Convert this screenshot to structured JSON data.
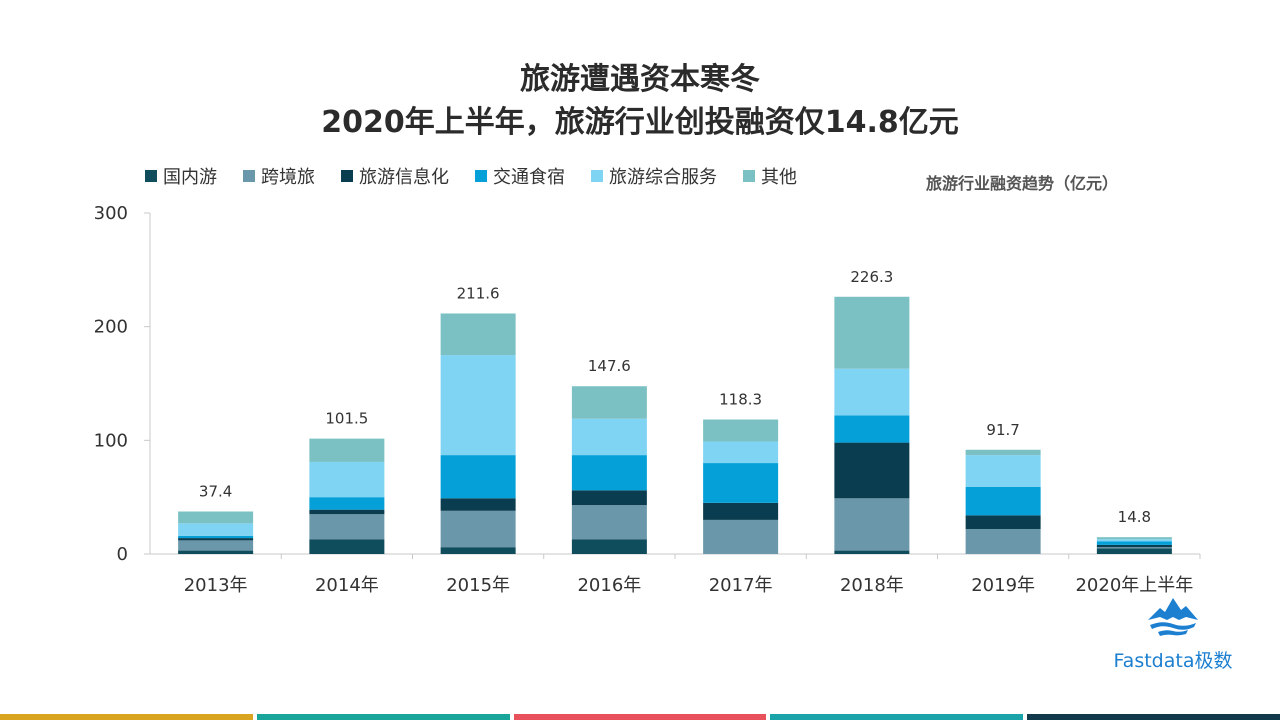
{
  "title": {
    "line1": "旅游遭遇资本寒冬",
    "line2": "2020年上半年，旅游行业创投融资仅14.8亿元"
  },
  "unit_label": "旅游行业融资趋势（亿元）",
  "logo": {
    "text": "Fastdata极数",
    "icon": "mountain-logo-icon"
  },
  "footer_colors": [
    "#d9a520",
    "#19a59a",
    "#e8515b",
    "#1aa3a8",
    "#123a4a"
  ],
  "chart_data": {
    "type": "bar",
    "stacked": true,
    "categories": [
      "2013年",
      "2014年",
      "2015年",
      "2016年",
      "2017年",
      "2018年",
      "2019年",
      "2020年上半年"
    ],
    "totals": [
      "37.4",
      "101.5",
      "211.6",
      "147.6",
      "118.3",
      "226.3",
      "91.7",
      "14.8"
    ],
    "series": [
      {
        "name": "国内游",
        "color": "#0f4c5c",
        "values": [
          3,
          13,
          6,
          13,
          0,
          3,
          0,
          5
        ]
      },
      {
        "name": "跨境旅",
        "color": "#6a97aa",
        "values": [
          9,
          22,
          32,
          30,
          30,
          46,
          22,
          1
        ]
      },
      {
        "name": "旅游信息化",
        "color": "#0a3d4f",
        "values": [
          2,
          4,
          11,
          13,
          15,
          49,
          12,
          2
        ]
      },
      {
        "name": "交通食宿",
        "color": "#05a0d8",
        "values": [
          2,
          11,
          38,
          31,
          35,
          24,
          25,
          3
        ]
      },
      {
        "name": "旅游综合服务",
        "color": "#7fd3f3",
        "values": [
          11,
          31,
          88,
          32,
          19,
          41,
          28,
          2
        ]
      },
      {
        "name": "其他",
        "color": "#7bc1c3",
        "values": [
          10.4,
          20.5,
          36.6,
          28.6,
          19.3,
          63.3,
          4.7,
          1.8
        ]
      }
    ],
    "y_ticks": [
      "0",
      "100",
      "200",
      "300"
    ],
    "ylim": [
      0,
      300
    ],
    "xlabel": "",
    "ylabel": ""
  }
}
